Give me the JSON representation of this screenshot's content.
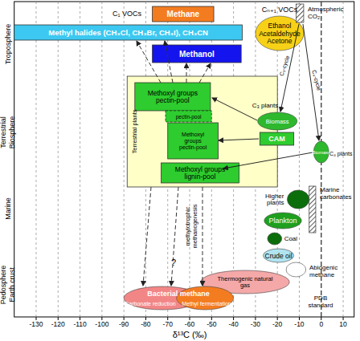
{
  "chart_data": {
    "type": "range",
    "xlabel": "δ¹³C (‰)",
    "xlim": [
      -140,
      15
    ],
    "xticks": [
      -130,
      -120,
      -110,
      -100,
      -90,
      -80,
      -70,
      -60,
      -50,
      -40,
      -30,
      -20,
      -10,
      0,
      10
    ],
    "grid": true,
    "zones": [
      [
        "Troposphere"
      ],
      [
        "Terrestrial",
        "Biosphere"
      ],
      [
        "Marine"
      ],
      [
        "Pedosphere",
        "Earth crust"
      ]
    ],
    "items": [
      {
        "label": [
          "Methane"
        ],
        "range": [
          -77,
          -49
        ],
        "type": "box",
        "color": "#f47c20"
      },
      {
        "label": [
          "Methyl halides (CH₃Cl, CH₃Br, CH₃I), CH₃CN"
        ],
        "range": [
          -140,
          -36
        ],
        "type": "box",
        "color": "#3cc8f0"
      },
      {
        "label": [
          "Methanol"
        ],
        "range": [
          -77,
          -36.5
        ],
        "type": "box",
        "color": "#1414ee"
      },
      {
        "label": [
          "Ethanol",
          "Acetaldehyde",
          "Acetone"
        ],
        "range": [
          -30,
          -8
        ],
        "type": "ellipse",
        "color": "#f7d117"
      },
      {
        "label": [
          "Atmospheric",
          "CO₂"
        ],
        "range": [
          -11.5,
          -8
        ],
        "type": "hatch",
        "color": "#333333"
      },
      {
        "label": [
          "Terrestrial plants"
        ],
        "range": [
          -88.5,
          -20
        ],
        "type": "box",
        "color": "#ffffc8"
      },
      {
        "label": [
          "Methoxyl groups",
          "pectin-pool"
        ],
        "range": [
          -85,
          -50.5
        ],
        "type": "box",
        "color": "#2ecc2e"
      },
      {
        "label": [
          "pectin-pool"
        ],
        "range": [
          -71,
          -50
        ],
        "type": "box",
        "color": "#2ecc2e",
        "line_style": "dashed"
      },
      {
        "label": [
          "Methoxyl",
          "groups",
          "pectin-pool"
        ],
        "range": [
          -70,
          -47
        ],
        "type": "box",
        "color": "#2ecc2e"
      },
      {
        "label": [
          "Methoxyl groups",
          "lignin-pool"
        ],
        "range": [
          -73,
          -37.5
        ],
        "type": "box",
        "color": "#2ecc2e"
      },
      {
        "label": [
          "Biomass"
        ],
        "range": [
          -29,
          -11
        ],
        "type": "ellipse",
        "color": "#2db82d"
      },
      {
        "label": [
          "CAM"
        ],
        "range": [
          -28,
          -12.5
        ],
        "type": "box",
        "color": "#2ecc2e"
      },
      {
        "label": [
          "Biomass"
        ],
        "range": [
          -3.5,
          3.5
        ],
        "type": "ellipse",
        "color": "#2db82d"
      },
      {
        "label": [
          "Higher",
          "plants"
        ],
        "range": [
          -15.5,
          -5.5
        ],
        "type": "ellipse",
        "color": "#0b6e0b"
      },
      {
        "label": [
          "Marine",
          "carbonates"
        ],
        "range": [
          -5.5,
          -2.5
        ],
        "type": "hatch",
        "color": "#333333"
      },
      {
        "label": [
          "Plankton"
        ],
        "range": [
          -26,
          -9
        ],
        "type": "ellipse",
        "color": "#1ea01e"
      },
      {
        "label": [
          "Coal"
        ],
        "range": [
          -24.5,
          -18
        ],
        "type": "ellipse",
        "color": "#0b6e0b"
      },
      {
        "label": [
          "Crude oil"
        ],
        "range": [
          -26.5,
          -12.5
        ],
        "type": "ellipse",
        "color": "#b0e4f0"
      },
      {
        "label": [
          "Thermogenic natural",
          "gas"
        ],
        "range": [
          -55,
          -14.5
        ],
        "type": "ellipse",
        "color": "#f4a8a8"
      },
      {
        "label": [
          "Abiogenic",
          "methane"
        ],
        "range": [
          -16,
          -7
        ],
        "type": "ellipse",
        "color": "#ffffff"
      },
      {
        "label": [
          "Carbonate reduction"
        ],
        "range": [
          -90,
          -55
        ],
        "type": "ellipse",
        "color": "#f28686"
      },
      {
        "label": [
          "Methyl fermentation"
        ],
        "range": [
          -66,
          -40
        ],
        "type": "ellipse",
        "color": "#f47c20"
      }
    ],
    "annotations": [
      [
        "C₁ VOCs"
      ],
      [
        "Cₙ₊₁ VOCs"
      ],
      [
        "C₃ plants"
      ],
      [
        "C₄ plants"
      ],
      [
        "C₃-cycle"
      ],
      [
        "C₄-cycle"
      ],
      [
        "methylotrophic",
        "methanogenesis"
      ],
      [
        "?"
      ],
      [
        "Bacterial methane"
      ],
      [
        "PDB",
        "standard"
      ]
    ]
  }
}
